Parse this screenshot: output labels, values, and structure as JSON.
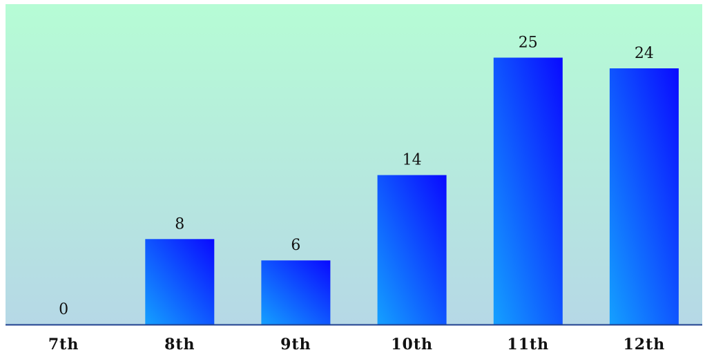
{
  "chart_data": {
    "type": "bar",
    "categories": [
      "7th",
      "8th",
      "9th",
      "10th",
      "11th",
      "12th"
    ],
    "values": [
      0,
      8,
      6,
      14,
      25,
      24
    ],
    "title": "",
    "xlabel": "",
    "ylabel": "",
    "ylim": [
      0,
      27
    ],
    "grid": false,
    "legend": "none",
    "data_labels": true
  },
  "colors": {
    "background_top": "#b6fcd5",
    "background_bottom": "#b6d8e6",
    "bar_light": "#14a0ff",
    "bar_dark": "#0a0aff",
    "axis": "#1f3f8f",
    "text": "#111111"
  }
}
